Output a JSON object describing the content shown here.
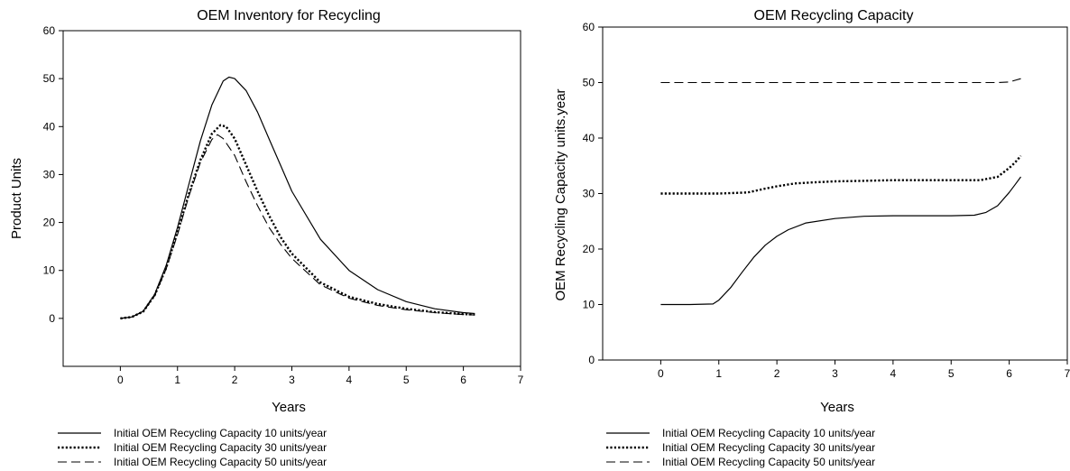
{
  "chart_data": [
    {
      "type": "line",
      "title": "OEM Inventory for Recycling",
      "xlabel": "Years",
      "ylabel": "Product Units",
      "xlim": [
        -1,
        7
      ],
      "ylim": [
        -10,
        60
      ],
      "xticks": [
        0,
        1,
        2,
        3,
        4,
        5,
        6,
        7
      ],
      "yticks": [
        0,
        10,
        20,
        30,
        40,
        50,
        60
      ],
      "grid": false,
      "legend_position": "bottom",
      "series": [
        {
          "name": "Initial OEM Recycling Capacity 10 units/year",
          "style": "solid",
          "x": [
            0,
            0.2,
            0.4,
            0.6,
            0.8,
            1.0,
            1.2,
            1.4,
            1.6,
            1.8,
            1.9,
            2.0,
            2.2,
            2.4,
            2.6,
            2.8,
            3.0,
            3.5,
            4.0,
            4.5,
            5.0,
            5.5,
            6.0,
            6.2
          ],
          "y": [
            0,
            0.3,
            1.5,
            5,
            11,
            19,
            28,
            37,
            44.5,
            49.5,
            50.3,
            50,
            47.5,
            43,
            37.5,
            32,
            26.5,
            16.5,
            10,
            6,
            3.5,
            2,
            1.2,
            1
          ]
        },
        {
          "name": "Initial OEM Recycling Capacity 30 units/year",
          "style": "dotted",
          "x": [
            0,
            0.2,
            0.4,
            0.6,
            0.8,
            1.0,
            1.2,
            1.4,
            1.6,
            1.75,
            1.85,
            2.0,
            2.2,
            2.4,
            2.6,
            2.8,
            3.0,
            3.5,
            4.0,
            4.5,
            5.0,
            5.5,
            6.0,
            6.2
          ],
          "y": [
            0,
            0.3,
            1.4,
            4.8,
            10.5,
            18,
            26,
            33,
            38.5,
            40.3,
            40,
            37.5,
            32,
            26.5,
            21.5,
            17,
            13.5,
            7.5,
            4.5,
            3,
            2,
            1.3,
            0.9,
            0.8
          ]
        },
        {
          "name": "Initial OEM Recycling Capacity 50 units/year",
          "style": "dashed",
          "x": [
            0,
            0.2,
            0.4,
            0.6,
            0.8,
            1.0,
            1.2,
            1.4,
            1.6,
            1.7,
            1.8,
            2.0,
            2.2,
            2.4,
            2.6,
            2.8,
            3.0,
            3.5,
            4.0,
            4.5,
            5.0,
            5.5,
            6.0,
            6.2
          ],
          "y": [
            0,
            0.3,
            1.4,
            4.7,
            10.3,
            17.5,
            25.5,
            32.5,
            37.3,
            38.3,
            37.5,
            34,
            28.5,
            23.5,
            19,
            15.5,
            12.5,
            7,
            4.2,
            2.7,
            1.8,
            1.2,
            0.8,
            0.7
          ]
        }
      ]
    },
    {
      "type": "line",
      "title": "OEM Recycling Capacity",
      "xlabel": "Years",
      "ylabel": "OEM Recycling Capacity units.year",
      "xlim": [
        -1,
        7
      ],
      "ylim": [
        0,
        60
      ],
      "xticks": [
        0,
        1,
        2,
        3,
        4,
        5,
        6,
        7
      ],
      "yticks": [
        0,
        10,
        20,
        30,
        40,
        50,
        60
      ],
      "grid": false,
      "legend_position": "bottom",
      "series": [
        {
          "name": "Initial OEM Recycling Capacity 10 units/year",
          "style": "solid",
          "x": [
            0,
            0.5,
            0.9,
            1.0,
            1.2,
            1.4,
            1.6,
            1.8,
            2.0,
            2.2,
            2.5,
            3.0,
            3.5,
            4.0,
            4.5,
            5.0,
            5.4,
            5.6,
            5.8,
            6.0,
            6.1,
            6.2
          ],
          "y": [
            10,
            10,
            10.1,
            10.8,
            13,
            15.8,
            18.5,
            20.7,
            22.3,
            23.5,
            24.7,
            25.5,
            25.9,
            26,
            26,
            26,
            26.1,
            26.6,
            27.8,
            30.2,
            31.6,
            33
          ]
        },
        {
          "name": "Initial OEM Recycling Capacity 30 units/year",
          "style": "dotted",
          "x": [
            0,
            0.5,
            1.0,
            1.5,
            1.8,
            2.0,
            2.3,
            2.6,
            3.0,
            3.5,
            4.0,
            4.5,
            5.0,
            5.5,
            5.8,
            6.0,
            6.1,
            6.2
          ],
          "y": [
            30,
            30,
            30,
            30.2,
            30.9,
            31.3,
            31.8,
            32,
            32.2,
            32.3,
            32.4,
            32.4,
            32.4,
            32.4,
            33,
            34.6,
            35.6,
            36.8
          ]
        },
        {
          "name": "Initial OEM Recycling Capacity 50 units/year",
          "style": "dashed",
          "x": [
            0,
            1,
            2,
            3,
            4,
            5,
            5.8,
            6.0,
            6.1,
            6.2
          ],
          "y": [
            50,
            50,
            50,
            50,
            50,
            50,
            50,
            50.1,
            50.4,
            50.7
          ]
        }
      ]
    }
  ]
}
